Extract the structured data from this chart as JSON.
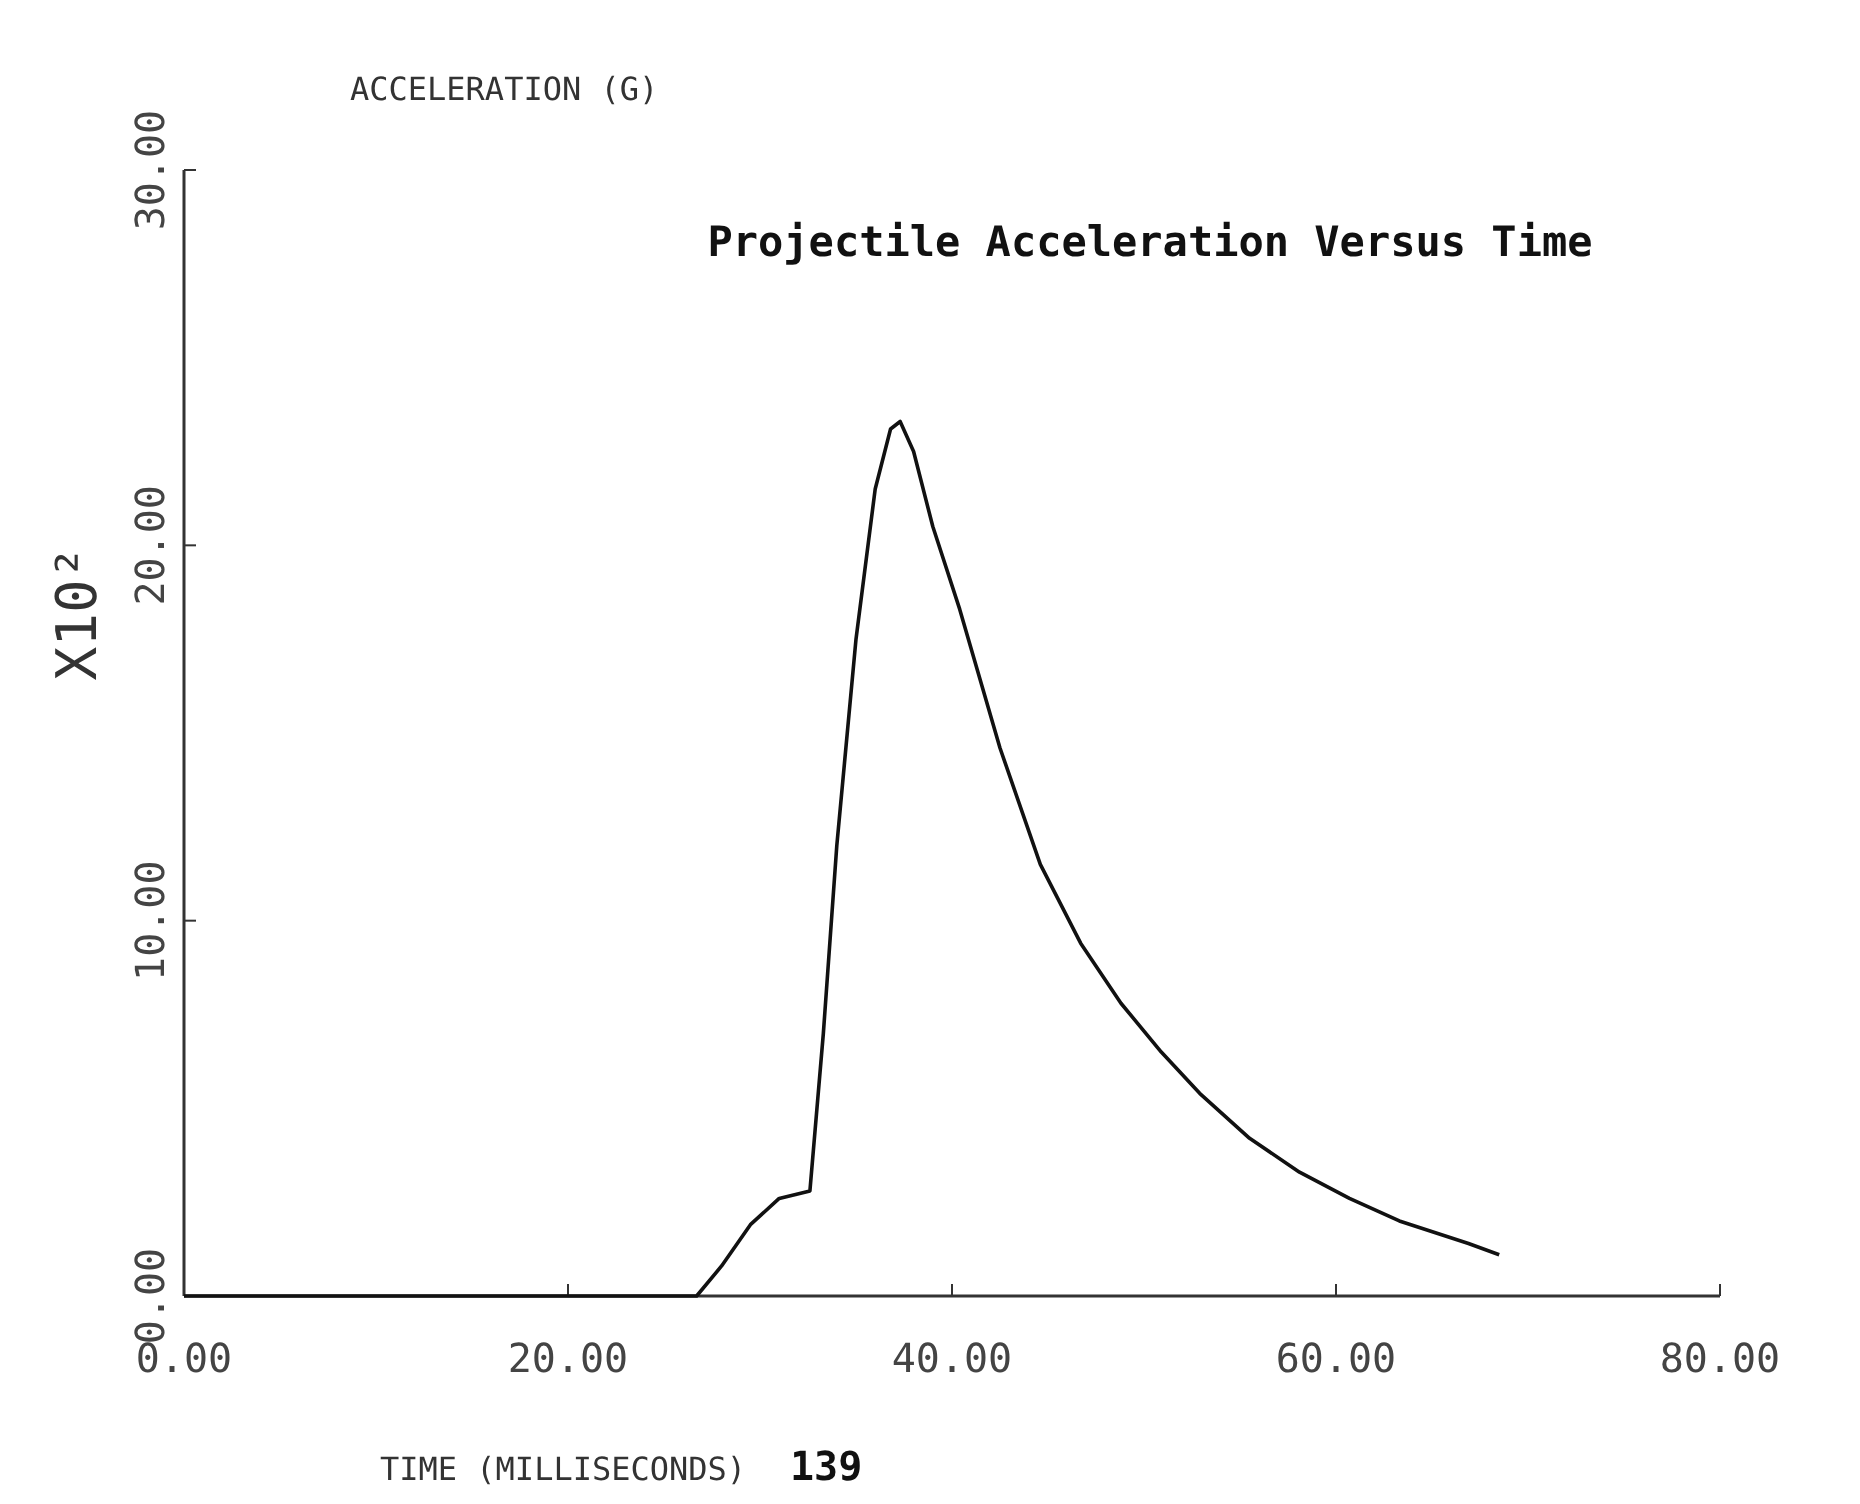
{
  "chart_data": {
    "type": "line",
    "title": "Projectile Acceleration Versus Time",
    "xlabel": "TIME (MILLISECONDS)",
    "ylabel": "ACCELERATION (G)",
    "annotations": [
      "X10²",
      "139"
    ],
    "x": [
      0,
      26.7,
      28,
      29.5,
      31,
      32.6,
      33.3,
      34,
      35,
      36,
      36.8,
      37.3,
      38,
      39,
      40.4,
      42.5,
      44.6,
      46.7,
      48.8,
      50.9,
      52.9,
      55.5,
      58.1,
      60.7,
      63.3,
      66.9,
      68.5
    ],
    "series": [
      {
        "color": "#111111",
        "values": [
          0,
          0,
          0.8,
          1.9,
          2.6,
          2.8,
          7,
          12,
          17.5,
          21.5,
          23.1,
          23.3,
          22.5,
          20.5,
          18.3,
          14.6,
          11.5,
          9.4,
          7.8,
          6.5,
          5.4,
          4.2,
          3.3,
          2.6,
          2.0,
          1.4,
          1.1
        ]
      }
    ],
    "xlim": [
      0,
      80
    ],
    "xticks": [
      {
        "value": 0,
        "label": "0.00"
      },
      {
        "value": 20,
        "label": "20.00"
      },
      {
        "value": 40,
        "label": "40.00"
      },
      {
        "value": 60,
        "label": "60.00"
      },
      {
        "value": 80,
        "label": "80.00"
      }
    ],
    "ylim": [
      0,
      30
    ],
    "yticks": [
      {
        "value": 0,
        "label": "0.00"
      },
      {
        "value": 10,
        "label": "10.00"
      },
      {
        "value": 20,
        "label": "20.00"
      },
      {
        "value": 30,
        "label": "30.00"
      }
    ],
    "marker": "none",
    "line_style": "solid"
  }
}
